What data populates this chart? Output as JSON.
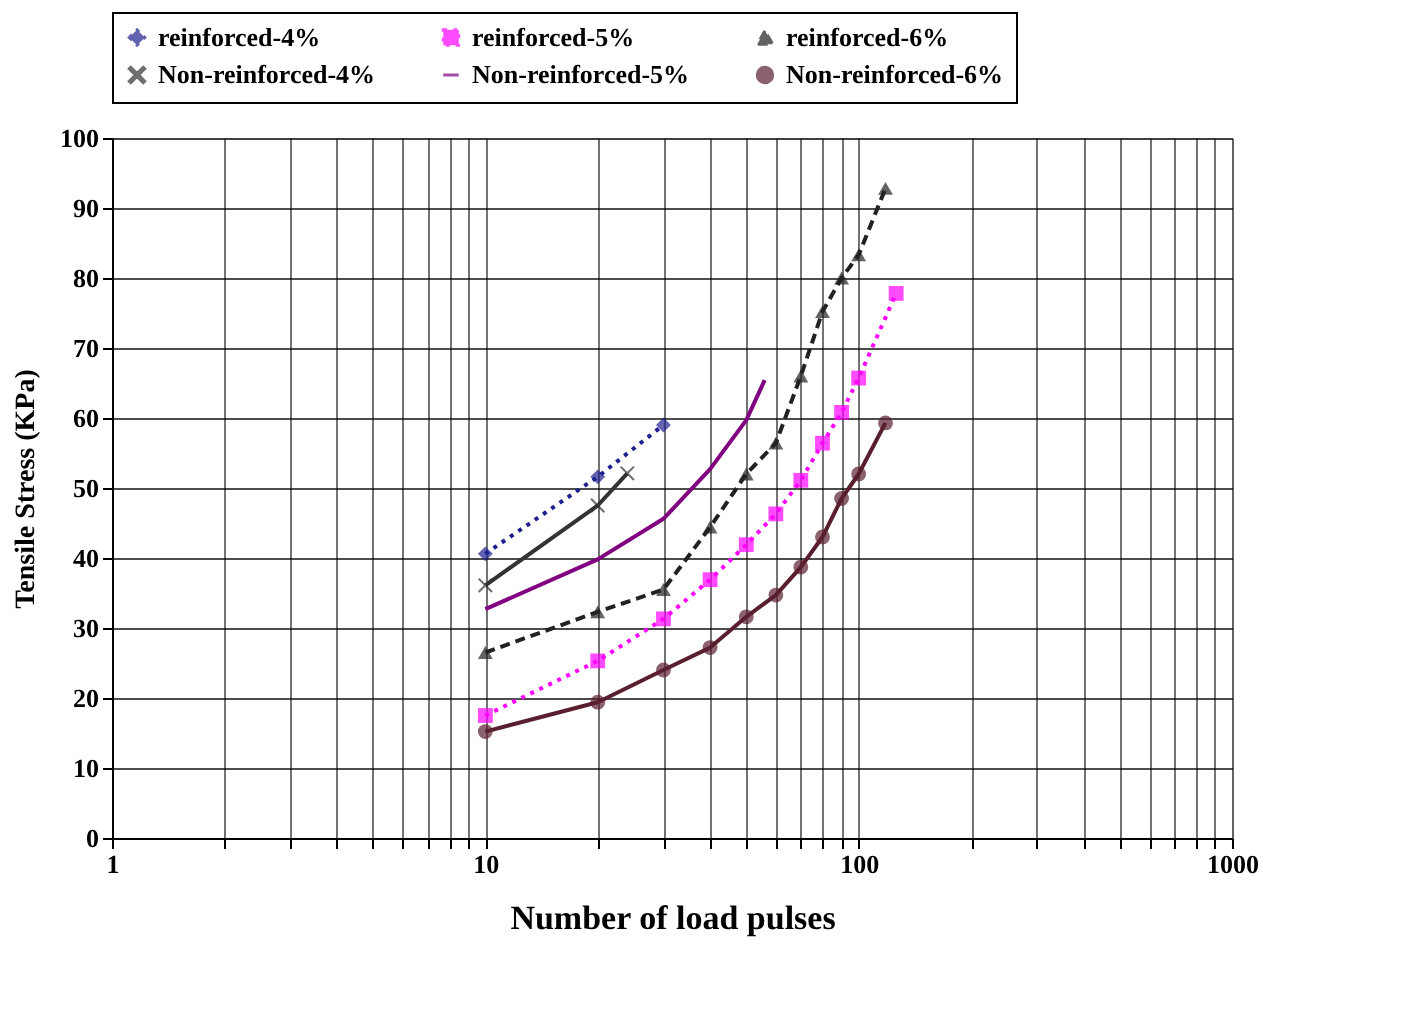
{
  "chart_data": {
    "type": "line",
    "xlabel": "Number of load pulses",
    "ylabel": "Tensile Stress (KPa)",
    "log": "x",
    "grid": true,
    "legend": "top",
    "xlim": [
      1,
      1000
    ],
    "ylim": [
      0,
      100
    ],
    "xticks": [
      1,
      {
        "value": 2,
        "label": null
      },
      {
        "value": 3,
        "label": null
      },
      {
        "value": 4,
        "label": null
      },
      {
        "value": 5,
        "label": null
      },
      {
        "value": 6,
        "label": null
      },
      {
        "value": 7,
        "label": null
      },
      {
        "value": 8,
        "label": null
      },
      {
        "value": 9,
        "label": null
      },
      10,
      {
        "value": 20,
        "label": null
      },
      {
        "value": 30,
        "label": null
      },
      {
        "value": 40,
        "label": null
      },
      {
        "value": 50,
        "label": null
      },
      {
        "value": 60,
        "label": null
      },
      {
        "value": 70,
        "label": null
      },
      {
        "value": 80,
        "label": null
      },
      {
        "value": 90,
        "label": null
      },
      100,
      {
        "value": 200,
        "label": null
      },
      {
        "value": 300,
        "label": null
      },
      {
        "value": 400,
        "label": null
      },
      {
        "value": 500,
        "label": null
      },
      {
        "value": 600,
        "label": null
      },
      {
        "value": 700,
        "label": null
      },
      {
        "value": 800,
        "label": null
      },
      {
        "value": 900,
        "label": null
      },
      1000
    ],
    "yticks": [
      0,
      10,
      20,
      30,
      40,
      50,
      60,
      70,
      80,
      90,
      100
    ],
    "series": [
      {
        "name": "reinforced-4%",
        "color": "#1f1f8f",
        "marker": "diamond",
        "line_style": "dotted",
        "x": [
          10,
          20,
          30
        ],
        "values": [
          40.6,
          51.6,
          59
        ]
      },
      {
        "name": "reinforced-5%",
        "color": "#ff00ff",
        "marker": "square",
        "line_style": "dotted",
        "x": [
          10,
          20,
          30,
          40,
          50,
          60,
          70,
          80,
          90,
          100,
          126
        ],
        "values": [
          17.5,
          25.3,
          31.3,
          36.9,
          41.9,
          46.3,
          51.1,
          56.4,
          60.8,
          65.7,
          77.8
        ]
      },
      {
        "name": "reinforced-6%",
        "color": "#222222",
        "marker": "triangle",
        "line_style": "dashed",
        "x": [
          10,
          20,
          30,
          40,
          50,
          60,
          70,
          80,
          90,
          100,
          118
        ],
        "values": [
          26.5,
          32.3,
          35.5,
          44.4,
          52,
          56.4,
          66,
          75.2,
          80,
          83.3,
          92.8
        ]
      },
      {
        "name": "Non-reinforced-4%",
        "color": "#333333",
        "marker": "cross",
        "line_style": "solid",
        "x": [
          10,
          20,
          24
        ],
        "values": [
          36.1,
          47.5,
          52.1
        ]
      },
      {
        "name": "Non-reinforced-5%",
        "color": "#800080",
        "marker": "none",
        "line_style": "solid",
        "x": [
          10,
          20,
          30,
          40,
          50,
          56
        ],
        "values": [
          32.7,
          39.8,
          45.6,
          52.7,
          59.7,
          65.4
        ]
      },
      {
        "name": "Non-reinforced-6%",
        "color": "#5a1f2f",
        "marker": "circle",
        "line_style": "solid",
        "x": [
          10,
          20,
          30,
          40,
          50,
          60,
          70,
          80,
          90,
          100,
          118
        ],
        "values": [
          15.2,
          19.4,
          24,
          27.2,
          31.6,
          34.7,
          38.7,
          43,
          48.5,
          52,
          59.3
        ]
      }
    ]
  }
}
